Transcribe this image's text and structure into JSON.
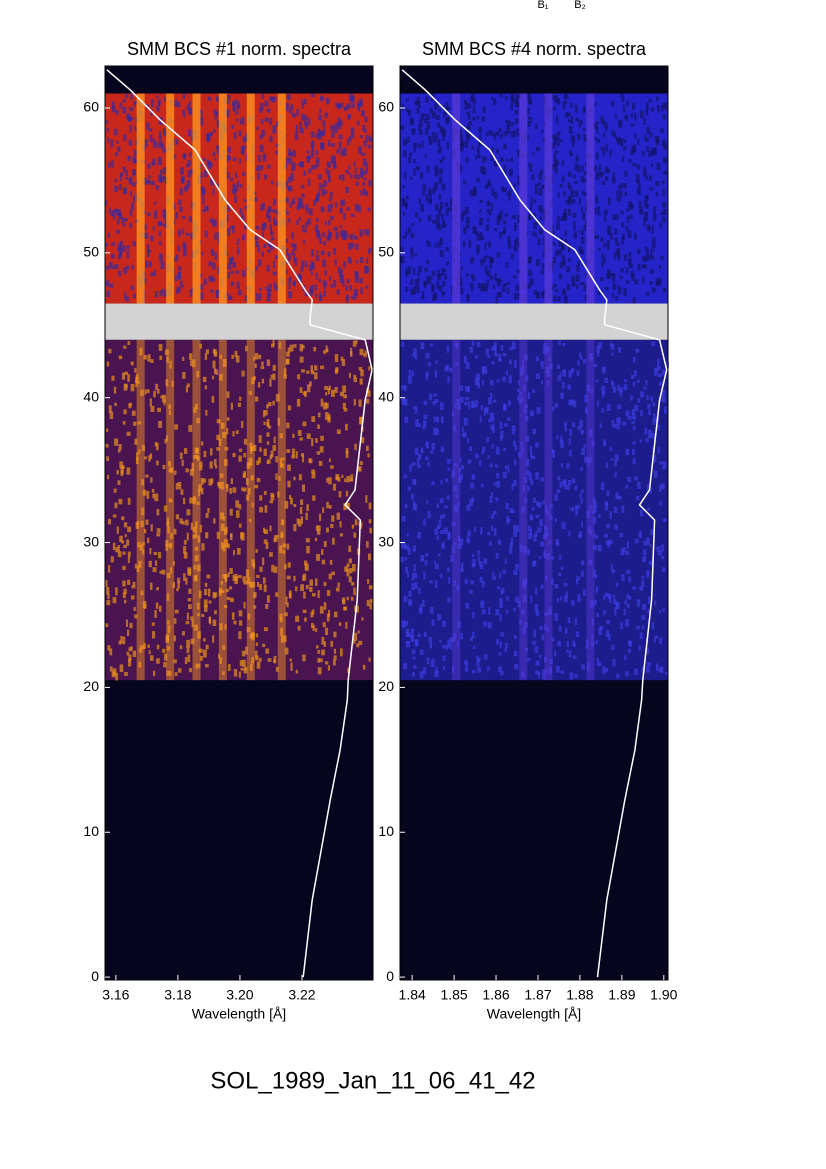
{
  "chart_data": [
    {
      "type": "heatmap",
      "title": "SMM BCS #1 norm. spectra",
      "xlabel": "Wavelength [Å]",
      "xlim": [
        3.1565,
        3.2429
      ],
      "xticks": [
        3.16,
        3.18,
        {
          "value": 3.2,
          "label": "3.20"
        },
        3.22
      ],
      "ylim": [
        -0.2,
        62.9
      ],
      "yticks": [
        0,
        10,
        20,
        30,
        40,
        50,
        60
      ],
      "blocks": [
        {
          "range": [
            46.5,
            61
          ],
          "color": "#c8281c",
          "noise": "#3a2a9a"
        },
        {
          "range": [
            20.5,
            44
          ],
          "color": "#4a1450",
          "noise": "#e8901c"
        }
      ],
      "gap": [
        44,
        46.5
      ],
      "gap_color": "#d3d3d3",
      "background": "#05051e",
      "lines": [
        3.168,
        3.1775,
        3.186,
        3.1945,
        3.2035,
        3.2135
      ],
      "line_color": "#ff9a20",
      "curve": {
        "color": "#ffffff",
        "x": [
          3.2204,
          3.2233,
          3.2291,
          3.2323,
          3.2346,
          3.2349,
          3.2378,
          3.2388,
          3.2339,
          3.2371,
          3.2404,
          3.2426,
          3.2404,
          3.2226,
          3.2226,
          3.2233,
          3.221,
          3.2129,
          3.2033,
          3.1952,
          3.1855,
          3.1742,
          3.1646,
          3.1571
        ],
        "y": [
          0,
          5.32,
          12.22,
          15.68,
          19.13,
          20.51,
          26.04,
          31.56,
          32.6,
          33.63,
          39.85,
          41.92,
          43.99,
          45.03,
          45.51,
          46.75,
          47.44,
          50.21,
          51.59,
          53.66,
          57.11,
          59.19,
          61.26,
          62.64
        ]
      }
    },
    {
      "type": "heatmap",
      "title": "SMM BCS #4 norm. spectra",
      "xlabel": "Wavelength [Å]",
      "xlim": [
        1.8371,
        1.901
      ],
      "xticks": [
        1.84,
        1.85,
        1.86,
        1.87,
        1.88,
        1.89,
        {
          "value": 1.9,
          "label": "1.90"
        }
      ],
      "ylim": [
        -0.2,
        62.9
      ],
      "yticks": [
        0,
        10,
        20,
        30,
        40,
        50,
        60
      ],
      "blocks": [
        {
          "range": [
            46.5,
            61
          ],
          "color": "#2424c8",
          "noise": "#14146a"
        },
        {
          "range": [
            20.5,
            44
          ],
          "color": "#1c1c8c",
          "noise": "#3c3ce0"
        }
      ],
      "gap": [
        44,
        46.5
      ],
      "gap_color": "#d3d3d3",
      "background": "#05051e",
      "lines": [
        1.8505,
        1.8665,
        1.8725,
        1.8825
      ],
      "line_color": "#5a3ad8",
      "curve": {
        "color": "#ffffff",
        "x": [
          1.8842,
          1.8864,
          1.8907,
          1.8931,
          1.8947,
          1.895,
          1.8971,
          1.8978,
          1.8942,
          1.8966,
          1.899,
          1.9007,
          1.899,
          1.8859,
          1.8859,
          1.8864,
          1.8847,
          1.8788,
          1.8716,
          1.8657,
          1.8585,
          1.8502,
          1.8431,
          1.8376
        ],
        "y": [
          0,
          5.32,
          12.22,
          15.68,
          19.13,
          20.51,
          26.04,
          31.56,
          32.6,
          33.63,
          39.85,
          41.92,
          43.99,
          45.03,
          45.51,
          46.75,
          47.44,
          50.21,
          51.59,
          53.66,
          57.11,
          59.19,
          61.26,
          62.64
        ]
      }
    }
  ],
  "footer": "SOL_1989_Jan_11_06_41_42",
  "corner_labels": [
    "B₁",
    "B₂"
  ]
}
